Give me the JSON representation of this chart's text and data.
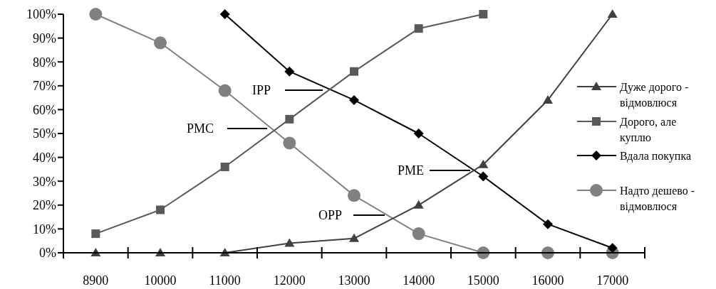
{
  "chart_data": {
    "type": "line",
    "categories": [
      "8900",
      "10000",
      "11000",
      "12000",
      "13000",
      "14000",
      "15000",
      "16000",
      "17000"
    ],
    "ylim": [
      0,
      100
    ],
    "yticks": [
      {
        "value": 0,
        "label": "0%"
      },
      {
        "value": 10,
        "label": "10%"
      },
      {
        "value": 20,
        "label": "20%"
      },
      {
        "value": 30,
        "label": "30%"
      },
      {
        "value": 40,
        "label": "40%"
      },
      {
        "value": 50,
        "label": "50%"
      },
      {
        "value": 60,
        "label": "60%"
      },
      {
        "value": 70,
        "label": "70%"
      },
      {
        "value": 80,
        "label": "80%"
      },
      {
        "value": 90,
        "label": "90%"
      },
      {
        "value": 100,
        "label": "100%"
      }
    ],
    "grid": false,
    "legend": "right",
    "line_style": "solid",
    "series": [
      {
        "name": "Дуже дорого - відмовлюся",
        "color": "#404040",
        "marker": "triangle",
        "values": [
          0,
          0,
          0,
          4,
          6,
          20,
          37,
          64,
          100
        ]
      },
      {
        "name": "Дорого, але куплю",
        "color": "#595959",
        "marker": "square",
        "values": [
          8,
          18,
          36,
          56,
          76,
          94,
          100,
          null,
          null
        ]
      },
      {
        "name": "Вдала покупка",
        "color": "#000000",
        "marker": "diamond",
        "values": [
          null,
          null,
          100,
          76,
          64,
          50,
          32,
          12,
          2
        ]
      },
      {
        "name": "Надто дешево - відмовлюся",
        "color": "#808080",
        "marker": "circle",
        "values": [
          100,
          88,
          68,
          46,
          24,
          8,
          0,
          0,
          0
        ]
      }
    ],
    "annotations": [
      "IPP",
      "PMC",
      "PME",
      "OPP"
    ]
  }
}
